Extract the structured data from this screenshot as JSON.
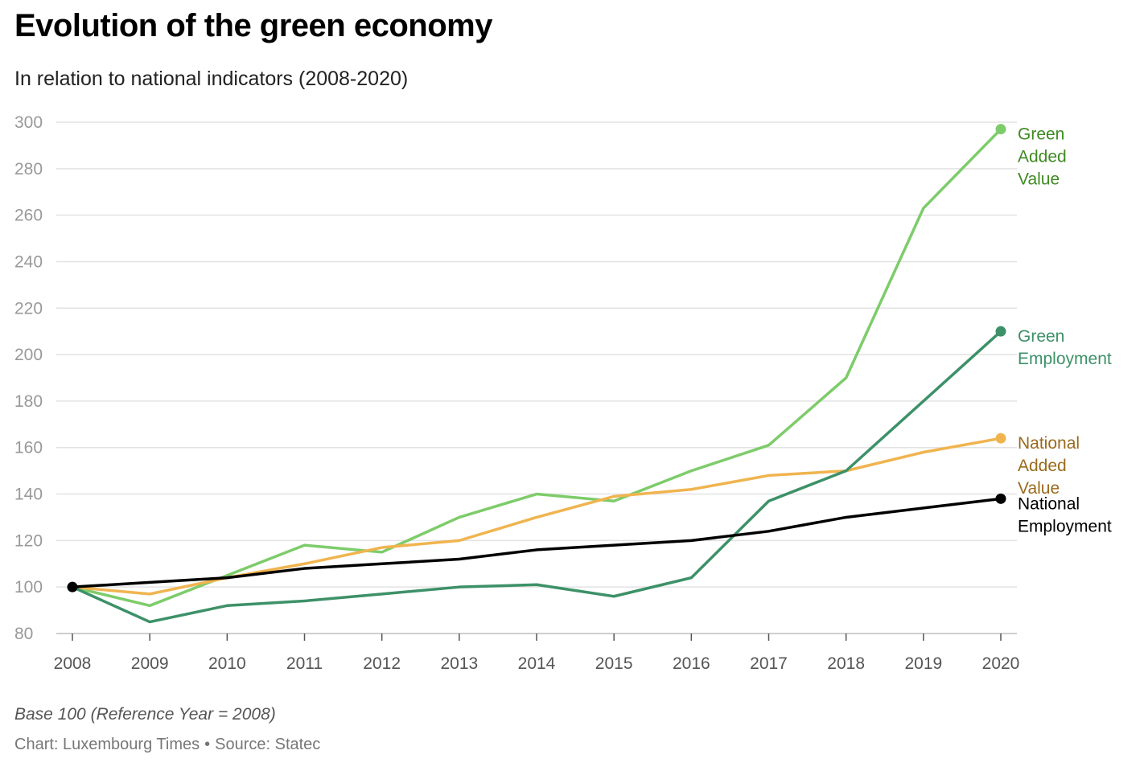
{
  "title": "Evolution of the green economy",
  "subtitle": "In relation to national indicators (2008-2020)",
  "note": "Base 100 (Reference Year = 2008)",
  "credit": {
    "chart": "Chart: Luxembourg Times",
    "separator": "•",
    "source": "Source: Statec"
  },
  "chart_data": {
    "type": "line",
    "title": "Evolution of the green economy",
    "subtitle": "In relation to national indicators (2008-2020)",
    "xlabel": "",
    "ylabel": "",
    "ylim": [
      80,
      300
    ],
    "yticks": [
      80,
      100,
      120,
      140,
      160,
      180,
      200,
      220,
      240,
      260,
      280,
      300
    ],
    "grid": true,
    "legend": "direct labels at line ends (right)",
    "x": [
      "2008",
      "2009",
      "2010",
      "2011",
      "2012",
      "2013",
      "2014",
      "2015",
      "2016",
      "2017",
      "2018",
      "2019",
      "2020"
    ],
    "series": [
      {
        "name": "Green Added Value",
        "label_lines": [
          "Green",
          "Added",
          "Value"
        ],
        "color": "#7dcc6a",
        "label_color": "#3e8a22",
        "values": [
          100,
          92,
          105,
          118,
          115,
          130,
          140,
          137,
          150,
          161,
          190,
          263,
          297
        ]
      },
      {
        "name": "National Added Value",
        "label_lines": [
          "National",
          "Added",
          "Value"
        ],
        "color": "#f0b44f",
        "label_color": "#9a6a1c",
        "values": [
          100,
          97,
          104,
          110,
          117,
          120,
          130,
          139,
          142,
          148,
          150,
          158,
          164
        ]
      },
      {
        "name": "Green Employment",
        "label_lines": [
          "Green",
          "Employment"
        ],
        "color": "#3d9168",
        "label_color": "#3d9168",
        "values": [
          100,
          85,
          92,
          94,
          97,
          100,
          101,
          96,
          104,
          137,
          150,
          180,
          210
        ]
      },
      {
        "name": "National Employment",
        "label_lines": [
          "National",
          "Employment"
        ],
        "color": "#000000",
        "label_color": "#000000",
        "values": [
          100,
          102,
          104,
          108,
          110,
          112,
          116,
          118,
          120,
          124,
          130,
          134,
          138
        ]
      }
    ]
  }
}
